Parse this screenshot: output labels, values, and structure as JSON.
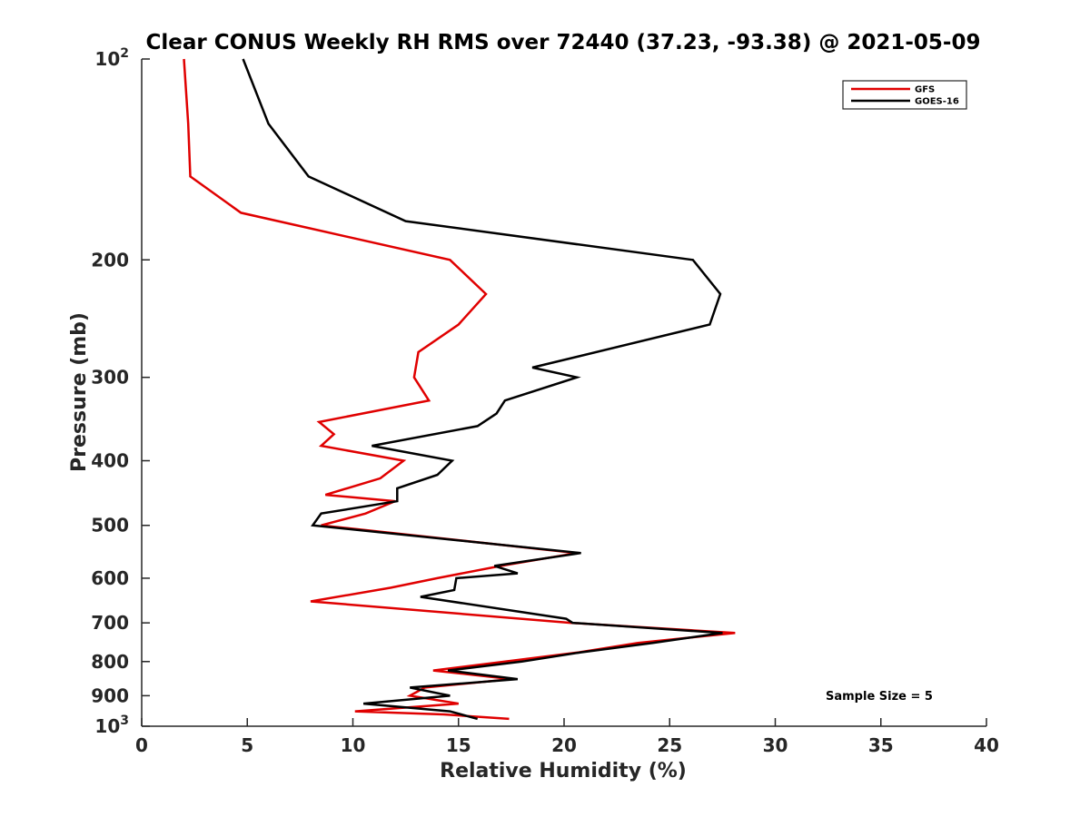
{
  "chart_data": {
    "type": "line",
    "title": "Clear CONUS Weekly RH RMS over 72440 (37.23, -93.38) @ 2021-05-09",
    "xlabel": "Relative Humidity (%)",
    "ylabel": "Pressure (mb)",
    "xlim": [
      0,
      40
    ],
    "ylim": [
      100,
      1000
    ],
    "yscale": "log",
    "y_reversed": true,
    "grid": false,
    "legend_position": "top-right",
    "xticks": [
      0,
      5,
      10,
      15,
      20,
      25,
      30,
      35,
      40
    ],
    "yticks": [
      {
        "value": 100,
        "base": "10",
        "exp": "2"
      },
      {
        "value": 200,
        "label": "200"
      },
      {
        "value": 300,
        "label": "300"
      },
      {
        "value": 400,
        "label": "400"
      },
      {
        "value": 500,
        "label": "500"
      },
      {
        "value": 600,
        "label": "600"
      },
      {
        "value": 700,
        "label": "700"
      },
      {
        "value": 800,
        "label": "800"
      },
      {
        "value": 900,
        "label": "900"
      },
      {
        "value": 1000,
        "base": "10",
        "exp": "3"
      }
    ],
    "series": [
      {
        "name": "GFS",
        "color": "#e00000",
        "points": [
          {
            "x": 2.0,
            "y": 100
          },
          {
            "x": 2.2,
            "y": 125
          },
          {
            "x": 2.3,
            "y": 150
          },
          {
            "x": 4.7,
            "y": 170
          },
          {
            "x": 14.6,
            "y": 200
          },
          {
            "x": 16.3,
            "y": 225
          },
          {
            "x": 15.0,
            "y": 250
          },
          {
            "x": 13.1,
            "y": 275
          },
          {
            "x": 12.9,
            "y": 300
          },
          {
            "x": 13.6,
            "y": 325
          },
          {
            "x": 8.4,
            "y": 350
          },
          {
            "x": 9.1,
            "y": 365
          },
          {
            "x": 8.5,
            "y": 380
          },
          {
            "x": 12.4,
            "y": 400
          },
          {
            "x": 11.3,
            "y": 425
          },
          {
            "x": 8.7,
            "y": 450
          },
          {
            "x": 12.0,
            "y": 460
          },
          {
            "x": 10.6,
            "y": 480
          },
          {
            "x": 8.5,
            "y": 500
          },
          {
            "x": 20.6,
            "y": 550
          },
          {
            "x": 17.0,
            "y": 575
          },
          {
            "x": 14.0,
            "y": 600
          },
          {
            "x": 11.8,
            "y": 620
          },
          {
            "x": 8.0,
            "y": 650
          },
          {
            "x": 20.3,
            "y": 700
          },
          {
            "x": 28.1,
            "y": 725
          },
          {
            "x": 23.5,
            "y": 750
          },
          {
            "x": 20.7,
            "y": 775
          },
          {
            "x": 13.8,
            "y": 825
          },
          {
            "x": 17.5,
            "y": 850
          },
          {
            "x": 13.4,
            "y": 875
          },
          {
            "x": 12.7,
            "y": 900
          },
          {
            "x": 15.0,
            "y": 925
          },
          {
            "x": 10.1,
            "y": 950
          },
          {
            "x": 14.3,
            "y": 960
          },
          {
            "x": 17.4,
            "y": 975
          }
        ]
      },
      {
        "name": "GOES-16",
        "color": "#000000",
        "points": [
          {
            "x": 4.8,
            "y": 100
          },
          {
            "x": 6.0,
            "y": 125
          },
          {
            "x": 7.9,
            "y": 150
          },
          {
            "x": 12.5,
            "y": 175
          },
          {
            "x": 26.1,
            "y": 200
          },
          {
            "x": 27.4,
            "y": 225
          },
          {
            "x": 26.9,
            "y": 250
          },
          {
            "x": 18.5,
            "y": 290
          },
          {
            "x": 20.6,
            "y": 300
          },
          {
            "x": 17.2,
            "y": 325
          },
          {
            "x": 16.8,
            "y": 340
          },
          {
            "x": 15.9,
            "y": 355
          },
          {
            "x": 10.9,
            "y": 380
          },
          {
            "x": 14.7,
            "y": 400
          },
          {
            "x": 14.0,
            "y": 420
          },
          {
            "x": 12.1,
            "y": 440
          },
          {
            "x": 12.1,
            "y": 460
          },
          {
            "x": 8.5,
            "y": 480
          },
          {
            "x": 8.1,
            "y": 500
          },
          {
            "x": 20.8,
            "y": 550
          },
          {
            "x": 16.7,
            "y": 575
          },
          {
            "x": 17.8,
            "y": 590
          },
          {
            "x": 14.9,
            "y": 600
          },
          {
            "x": 14.8,
            "y": 625
          },
          {
            "x": 13.2,
            "y": 640
          },
          {
            "x": 20.1,
            "y": 690
          },
          {
            "x": 20.4,
            "y": 700
          },
          {
            "x": 27.5,
            "y": 725
          },
          {
            "x": 24.2,
            "y": 750
          },
          {
            "x": 20.8,
            "y": 775
          },
          {
            "x": 18.0,
            "y": 800
          },
          {
            "x": 14.5,
            "y": 825
          },
          {
            "x": 17.8,
            "y": 850
          },
          {
            "x": 12.7,
            "y": 875
          },
          {
            "x": 14.6,
            "y": 900
          },
          {
            "x": 10.5,
            "y": 925
          },
          {
            "x": 14.6,
            "y": 950
          },
          {
            "x": 15.9,
            "y": 975
          }
        ]
      }
    ],
    "annotation": "Sample Size = 5"
  }
}
